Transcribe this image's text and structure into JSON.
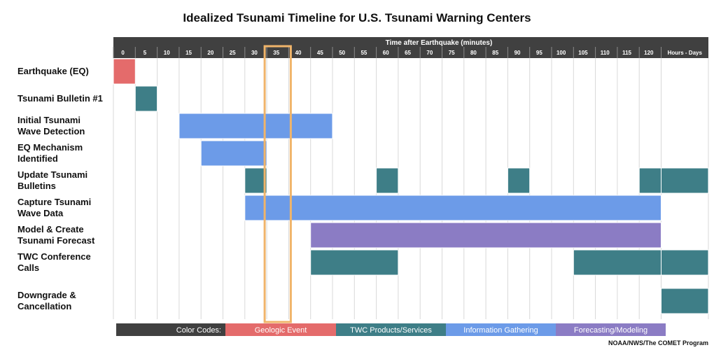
{
  "chart_data": {
    "type": "gantt",
    "title": "Idealized Tsunami Timeline for U.S. Tsunami Warning Centers",
    "xlabel": "Time after Earthquake (minutes)",
    "x_ticks": [
      "0",
      "5",
      "10",
      "15",
      "20",
      "25",
      "30",
      "35",
      "40",
      "45",
      "50",
      "55",
      "60",
      "65",
      "70",
      "75",
      "80",
      "85",
      "90",
      "95",
      "100",
      "105",
      "110",
      "115",
      "120",
      "Hours - Days"
    ],
    "highlight": {
      "start": 35,
      "end": 40
    },
    "categories": [
      {
        "key": "geologic",
        "label": "Geologic Event",
        "color": "#e46b6b"
      },
      {
        "key": "products",
        "label": "TWC Products/Services",
        "color": "#3e7e87"
      },
      {
        "key": "info",
        "label": "Information Gathering",
        "color": "#6c9be8"
      },
      {
        "key": "forecast",
        "label": "Forecasting/Modeling",
        "color": "#8b7cc4"
      }
    ],
    "legend_label": "Color Codes:",
    "rows": [
      {
        "label": [
          "Earthquake (EQ)"
        ],
        "bars": [
          {
            "start": 0,
            "end": 5,
            "category": "geologic"
          }
        ]
      },
      {
        "label": [
          "Tsunami Bulletin #1"
        ],
        "bars": [
          {
            "start": 5,
            "end": 10,
            "category": "products"
          }
        ]
      },
      {
        "label": [
          "Initial Tsunami",
          "Wave Detection"
        ],
        "bars": [
          {
            "start": 15,
            "end": 50,
            "category": "info"
          }
        ]
      },
      {
        "label": [
          "EQ Mechanism",
          "Identified"
        ],
        "bars": [
          {
            "start": 20,
            "end": 35,
            "category": "info"
          }
        ]
      },
      {
        "label": [
          "Update Tsunami",
          "Bulletins"
        ],
        "bars": [
          {
            "start": 30,
            "end": 35,
            "category": "products"
          },
          {
            "start": 60,
            "end": 65,
            "category": "products"
          },
          {
            "start": 90,
            "end": 95,
            "category": "products"
          },
          {
            "start": 120,
            "end": 125,
            "category": "products"
          },
          {
            "start": 125,
            "end": 136,
            "category": "products"
          }
        ]
      },
      {
        "label": [
          "Capture Tsunami",
          "Wave Data"
        ],
        "bars": [
          {
            "start": 30,
            "end": 125,
            "category": "info"
          }
        ]
      },
      {
        "label": [
          "Model & Create",
          "Tsunami Forecast"
        ],
        "bars": [
          {
            "start": 45,
            "end": 125,
            "category": "forecast"
          }
        ]
      },
      {
        "label": [
          "TWC Conference",
          "Calls"
        ],
        "bars": [
          {
            "start": 45,
            "end": 65,
            "category": "products"
          },
          {
            "start": 105,
            "end": 125,
            "category": "products"
          },
          {
            "start": 125,
            "end": 136,
            "category": "products"
          }
        ]
      },
      {
        "label": [
          "Downgrade &",
          "Cancellation"
        ],
        "bars": [
          {
            "start": 125,
            "end": 136,
            "category": "products"
          }
        ]
      }
    ],
    "credit": "NOAA/NWS/The COMET Program"
  }
}
